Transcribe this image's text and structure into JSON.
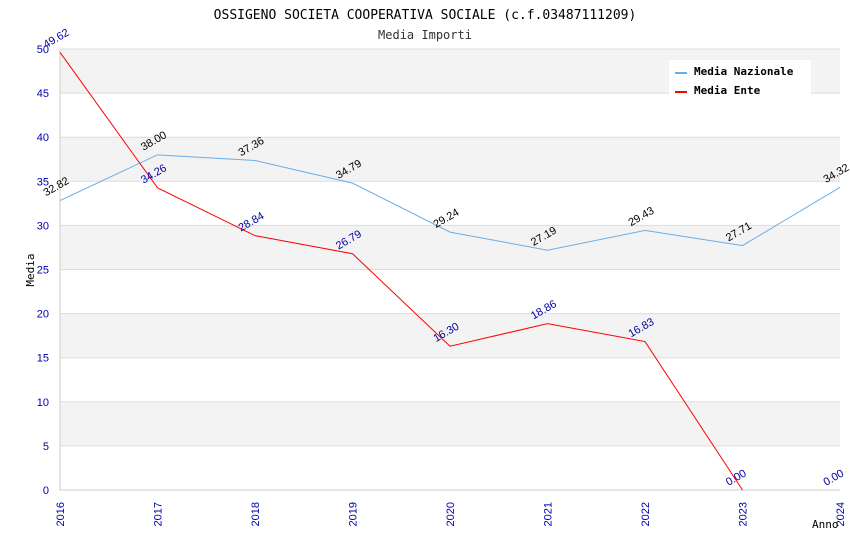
{
  "chart_data": {
    "type": "line",
    "title": "OSSIGENO SOCIETA COOPERATIVA SOCIALE (c.f.03487111209)",
    "subtitle": "Media Importi",
    "xlabel": "Anno",
    "ylabel": "Media",
    "categories": [
      "2016",
      "2017",
      "2018",
      "2019",
      "2020",
      "2021",
      "2022",
      "2023",
      "2024"
    ],
    "ylim": [
      0,
      50
    ],
    "yticks": [
      0,
      5,
      10,
      15,
      20,
      25,
      30,
      35,
      40,
      45,
      50
    ],
    "legend_position": "top-right",
    "series": [
      {
        "name": "Media Nazionale",
        "color": "#6aaee8",
        "values": [
          32.82,
          38.0,
          37.36,
          34.79,
          29.24,
          27.19,
          29.43,
          27.71,
          34.32
        ],
        "labels": [
          "32.82",
          "38.00",
          "37.36",
          "34.79",
          "29.24",
          "27.19",
          "29.43",
          "27.71",
          "34.32"
        ]
      },
      {
        "name": "Media Ente",
        "color": "#ff0000",
        "values": [
          49.62,
          34.26,
          28.84,
          26.79,
          16.3,
          18.86,
          16.83,
          0.0,
          0.0
        ],
        "labels": [
          "49.62",
          "34.26",
          "28.84",
          "26.79",
          "16.30",
          "18.86",
          "16.83",
          "0.00",
          "0.00"
        ],
        "line_points": 8
      }
    ]
  }
}
